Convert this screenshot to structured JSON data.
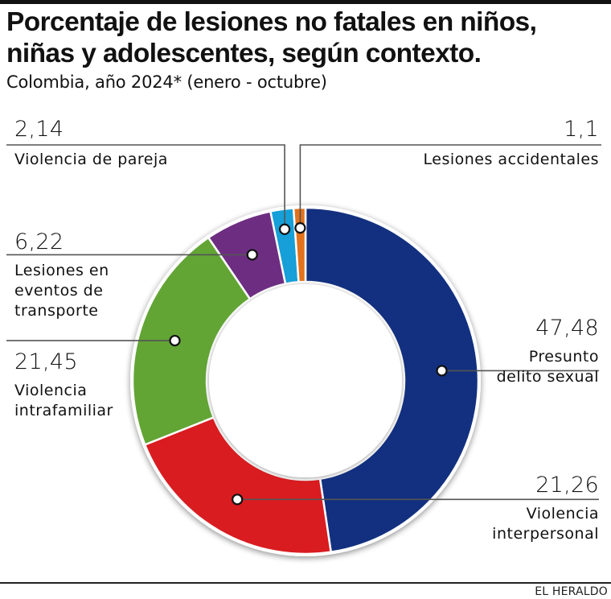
{
  "header": {
    "title_line1": "Porcentaje de lesiones no fatales en niños,",
    "title_line2": "niñas y adolescentes, según contexto.",
    "subtitle": "Colombia, año 2024* (enero - octubre)"
  },
  "footer": {
    "brand": "EL HERALDO"
  },
  "chart_data": {
    "type": "pie",
    "variant": "donut",
    "title": "Porcentaje de lesiones no fatales en niños, niñas y adolescentes, según contexto.",
    "subtitle": "Colombia, año 2024* (enero - octubre)",
    "unit": "%",
    "start": "12 o'clock",
    "direction": "clockwise",
    "slices": [
      {
        "label": "Presunto delito sexual",
        "label_lines": [
          "Presunto",
          "delito sexual"
        ],
        "value": 47.48,
        "value_text": "47,48",
        "color": "#12307f"
      },
      {
        "label": "Violencia interpersonal",
        "label_lines": [
          "Violencia",
          "interpersonal"
        ],
        "value": 21.26,
        "value_text": "21,26",
        "color": "#d91c20"
      },
      {
        "label": "Violencia intrafamiliar",
        "label_lines": [
          "Violencia",
          "intrafamiliar"
        ],
        "value": 21.45,
        "value_text": "21,45",
        "color": "#62a535"
      },
      {
        "label": "Lesiones en eventos de transporte",
        "label_lines": [
          "Lesiones en",
          "eventos de",
          "transporte"
        ],
        "value": 6.22,
        "value_text": "6,22",
        "color": "#6d2e82"
      },
      {
        "label": "Violencia de pareja",
        "label_lines": [
          "Violencia de pareja"
        ],
        "value": 2.14,
        "value_text": "2,14",
        "color": "#169fd8"
      },
      {
        "label": "Lesiones accidentales",
        "label_lines": [
          "Lesiones accidentales"
        ],
        "value": 1.1,
        "value_text": "1,1",
        "color": "#e2721d"
      }
    ]
  }
}
